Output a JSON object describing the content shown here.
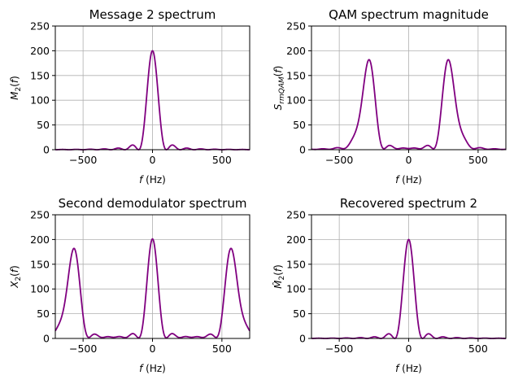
{
  "chart_data": [
    {
      "type": "line",
      "title": "Message 2 spectrum",
      "xlabel": "f (Hz)",
      "ylabel": "M2(f)",
      "xlim": [
        -700,
        700
      ],
      "ylim": [
        0,
        250
      ],
      "xticks": [
        -500,
        0,
        500
      ],
      "yticks": [
        0,
        50,
        100,
        150,
        200,
        250
      ],
      "grid": true,
      "color": "#800080",
      "series": [
        {
          "components": [
            {
              "center": 0,
              "height": 200
            }
          ]
        }
      ]
    },
    {
      "type": "line",
      "title": "QAM spectrum magnitude",
      "xlabel": "f (Hz)",
      "ylabel": "S_rmQAM(f)",
      "xlim": [
        -700,
        700
      ],
      "ylim": [
        0,
        250
      ],
      "xticks": [
        -500,
        0,
        500
      ],
      "yticks": [
        0,
        50,
        100,
        150,
        200,
        250
      ],
      "grid": true,
      "color": "#800080",
      "series": [
        {
          "components": [
            {
              "center": -350,
              "height": 52
            },
            {
              "center": -280,
              "height": 173
            },
            {
              "center": 280,
              "height": 173
            },
            {
              "center": 350,
              "height": 52
            }
          ]
        }
      ]
    },
    {
      "type": "line",
      "title": "Second demodulator spectrum",
      "xlabel": "f (Hz)",
      "ylabel": "X2(f)",
      "xlim": [
        -700,
        700
      ],
      "ylim": [
        0,
        250
      ],
      "xticks": [
        -500,
        0,
        500
      ],
      "yticks": [
        0,
        50,
        100,
        150,
        200,
        250
      ],
      "grid": true,
      "color": "#800080",
      "series": [
        {
          "components": [
            {
              "center": -630,
              "height": 52
            },
            {
              "center": -560,
              "height": 173
            },
            {
              "center": 0,
              "height": 200
            },
            {
              "center": 560,
              "height": 173
            },
            {
              "center": 630,
              "height": 52
            }
          ]
        }
      ]
    },
    {
      "type": "line",
      "title": "Recovered spectrum 2",
      "xlabel": "f (Hz)",
      "ylabel": "M̂2(f)",
      "xlim": [
        -700,
        700
      ],
      "ylim": [
        0,
        250
      ],
      "xticks": [
        -500,
        0,
        500
      ],
      "yticks": [
        0,
        50,
        100,
        150,
        200,
        250
      ],
      "grid": true,
      "color": "#800080",
      "series": [
        {
          "components": [
            {
              "center": 0,
              "height": 200
            }
          ]
        }
      ]
    }
  ]
}
